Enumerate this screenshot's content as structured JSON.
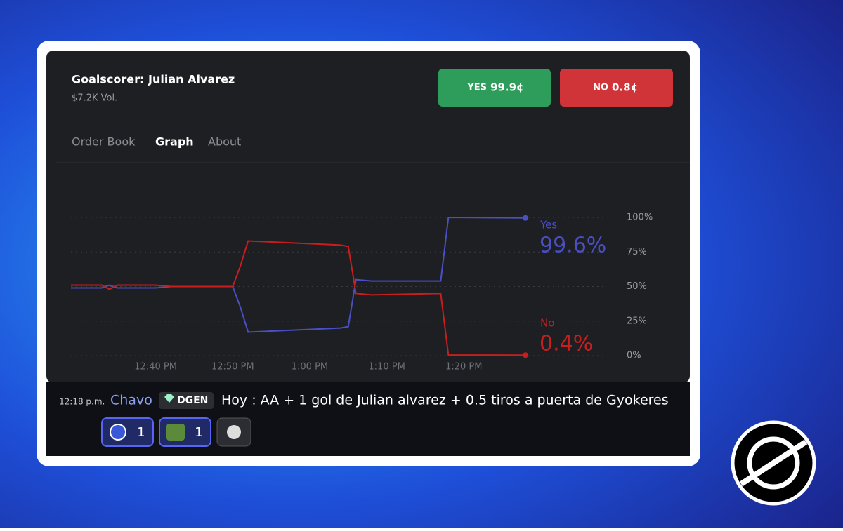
{
  "header": {
    "title": "Goalscorer: Julian Alvarez",
    "volume": "$7.2K Vol."
  },
  "buttons": [
    {
      "label": "YES",
      "price": "99.9¢"
    },
    {
      "label": "NO",
      "price": "0.8¢"
    }
  ],
  "tabs": [
    "Order Book",
    "Graph",
    "About"
  ],
  "chart_data": {
    "type": "line",
    "x": [
      "12:29 PM",
      "12:33 PM",
      "12:34 PM",
      "12:35 PM",
      "12:40 PM",
      "12:42 PM",
      "12:50 PM",
      "12:51 PM",
      "12:52 PM",
      "1:04 PM",
      "1:05 PM",
      "1:06 PM",
      "1:08 PM",
      "1:17 PM",
      "1:18 PM",
      "1:28 PM"
    ],
    "xlim": [
      "12:29 PM",
      "1:28 PM"
    ],
    "xticks": [
      "12:40 PM",
      "12:50 PM",
      "1:00 PM",
      "1:10 PM",
      "1:20 PM"
    ],
    "ylim": [
      0,
      100
    ],
    "yticks": [
      {
        "value": 0,
        "label": "0%"
      },
      {
        "value": 25,
        "label": "25%"
      },
      {
        "value": 50,
        "label": "50%"
      },
      {
        "value": 75,
        "label": "75%"
      },
      {
        "value": 100,
        "label": "100%"
      }
    ],
    "grid": true,
    "series": [
      {
        "name": "Yes",
        "color": "#4a4fc4",
        "end_label": "99.6%",
        "values": [
          49,
          49,
          51,
          49,
          49,
          50,
          50,
          35,
          17,
          20,
          21,
          55,
          54,
          54,
          100,
          99.6
        ]
      },
      {
        "name": "No",
        "color": "#c81e1e",
        "end_label": "0.4%",
        "values": [
          51,
          51,
          48,
          51,
          51,
          50,
          50,
          65,
          83,
          80,
          79,
          45,
          44,
          45,
          0.5,
          0.4
        ]
      }
    ]
  },
  "message": {
    "time": "12:18 p.m.",
    "author": "Chavo",
    "badge": "DGEN",
    "text": "Hoy : AA + 1 gol de Julian alvarez + 0.5 tiros a puerta de Gyokeres",
    "reactions": [
      {
        "count": 1
      },
      {
        "count": 1
      }
    ]
  }
}
